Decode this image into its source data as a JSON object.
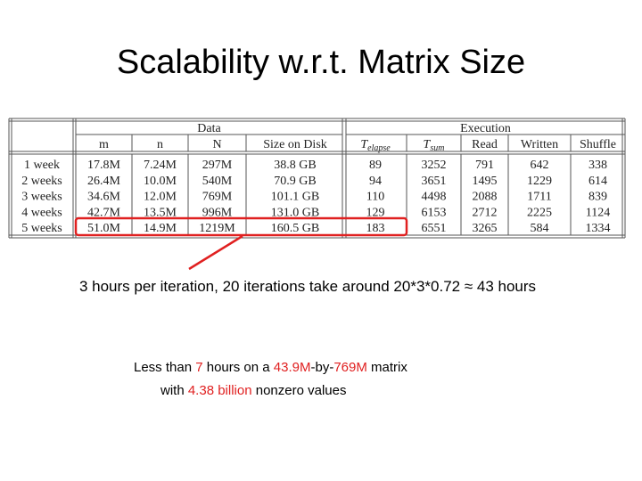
{
  "title": "Scalability w.r.t. Matrix Size",
  "table": {
    "groups": [
      "Data",
      "Execution"
    ],
    "columns": [
      "m",
      "n",
      "N",
      "Size on Disk",
      {
        "base": "T",
        "sub": "elapse"
      },
      {
        "base": "T",
        "sub": "sum"
      },
      "Read",
      "Written",
      "Shuffle"
    ],
    "rows": [
      {
        "label": "1 week",
        "values": [
          "17.8M",
          "7.24M",
          "297M",
          "38.8 GB",
          89,
          3252,
          791,
          642,
          338
        ]
      },
      {
        "label": "2 weeks",
        "values": [
          "26.4M",
          "10.0M",
          "540M",
          "70.9 GB",
          94,
          3651,
          1495,
          1229,
          614
        ]
      },
      {
        "label": "3 weeks",
        "values": [
          "34.6M",
          "12.0M",
          "769M",
          "101.1 GB",
          110,
          4498,
          2088,
          1711,
          839
        ]
      },
      {
        "label": "4 weeks",
        "values": [
          "42.7M",
          "13.5M",
          "996M",
          "131.0 GB",
          129,
          6153,
          2712,
          2225,
          1124
        ]
      },
      {
        "label": "5 weeks",
        "values": [
          "51.0M",
          "14.9M",
          "1219M",
          "160.5 GB",
          183,
          6551,
          3265,
          584,
          1334
        ]
      }
    ]
  },
  "callout": "3 hours per iteration, 20 iterations take around 20*3*0.72 ≈ 43 hours",
  "summary": [
    [
      {
        "text": "Less than "
      },
      {
        "text": "7",
        "highlight": true
      },
      {
        "text": " hours on a "
      },
      {
        "text": "43.9M",
        "highlight": true
      },
      {
        "text": "-by-"
      },
      {
        "text": "769M",
        "highlight": true
      },
      {
        "text": " matrix"
      }
    ],
    [
      {
        "text": "with "
      },
      {
        "text": "4.38 billion",
        "highlight": true
      },
      {
        "text": " nonzero values"
      }
    ]
  ]
}
